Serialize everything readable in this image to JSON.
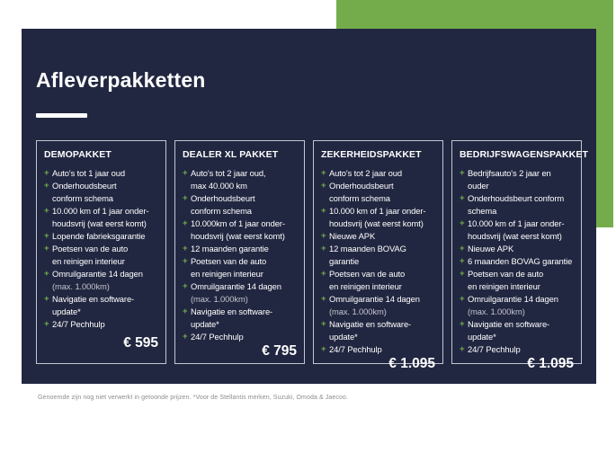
{
  "page": {
    "title": "Afleverpakketten",
    "footnote": "Genoemde zijn nog niet verwerkt in getoonde prijzen. *Voor de Stellantis merken, Suzuki, Omoda & Jaecoo."
  },
  "colors": {
    "accent_green": "#74AC4B",
    "panel_navy": "#222741",
    "text_white": "#FFFFFF",
    "card_border": "rgba(235,239,246,0.8)",
    "footnote_gray": "#8D8D8D"
  },
  "bullet_glyph": "+",
  "packages": [
    {
      "name": "DEMOPAKKET",
      "features": [
        {
          "text": "Auto's tot 1 jaar oud"
        },
        {
          "text": "Onderhoudsbeurt\nconform schema"
        },
        {
          "text": "10.000 km of 1 jaar onder-\nhoudsvrij (wat eerst komt)"
        },
        {
          "text": "Lopende fabrieksgarantie"
        },
        {
          "text": "Poetsen van de auto\nen reinigen interieur"
        },
        {
          "text": "Omruilgarantie 14 dagen",
          "sub": "(max. 1.000km)"
        },
        {
          "text": "Navigatie en software-update*"
        },
        {
          "text": "24/7 Pechhulp"
        }
      ],
      "price": "€ 595"
    },
    {
      "name": "DEALER XL PAKKET",
      "features": [
        {
          "text": "Auto's tot 2 jaar oud,\nmax 40.000 km"
        },
        {
          "text": "Onderhoudsbeurt\nconform schema"
        },
        {
          "text": "10.000km of 1 jaar onder-\nhoudsvrij (wat eerst komt)"
        },
        {
          "text": "12 maanden garantie"
        },
        {
          "text": "Poetsen van de auto\nen reinigen interieur"
        },
        {
          "text": "Omruilgarantie 14 dagen",
          "sub": "(max. 1.000km)"
        },
        {
          "text": "Navigatie en software-update*"
        },
        {
          "text": "24/7 Pechhulp"
        }
      ],
      "price": "€ 795"
    },
    {
      "name": "ZEKERHEIDSPAKKET",
      "features": [
        {
          "text": "Auto's tot 2 jaar oud"
        },
        {
          "text": "Onderhoudsbeurt\nconform schema"
        },
        {
          "text": "10.000 km of 1 jaar onder-\nhoudsvrij (wat eerst komt)"
        },
        {
          "text": "Nieuwe APK"
        },
        {
          "text": "12 maanden BOVAG garantie"
        },
        {
          "text": "Poetsen van de auto\nen reinigen interieur"
        },
        {
          "text": "Omruilgarantie 14 dagen",
          "sub": "(max. 1.000km)"
        },
        {
          "text": "Navigatie en software-update*"
        },
        {
          "text": "24/7 Pechhulp"
        }
      ],
      "price": "€ 1.095"
    },
    {
      "name": "BEDRIJFSWAGENSPAKKET",
      "features": [
        {
          "text": "Bedrijfsauto's 2 jaar en ouder"
        },
        {
          "text": "Onderhoudsbeurt conform\nschema"
        },
        {
          "text": "10.000 km of 1 jaar onder-\nhoudsvrij (wat eerst komt)"
        },
        {
          "text": "Nieuwe APK"
        },
        {
          "text": "6 maanden BOVAG garantie"
        },
        {
          "text": "Poetsen van de auto\nen reinigen interieur"
        },
        {
          "text": "Omruilgarantie 14 dagen",
          "sub": "(max. 1.000km)"
        },
        {
          "text": "Navigatie en software-update*"
        },
        {
          "text": "24/7 Pechhulp"
        }
      ],
      "price": "€ 1.095"
    }
  ]
}
